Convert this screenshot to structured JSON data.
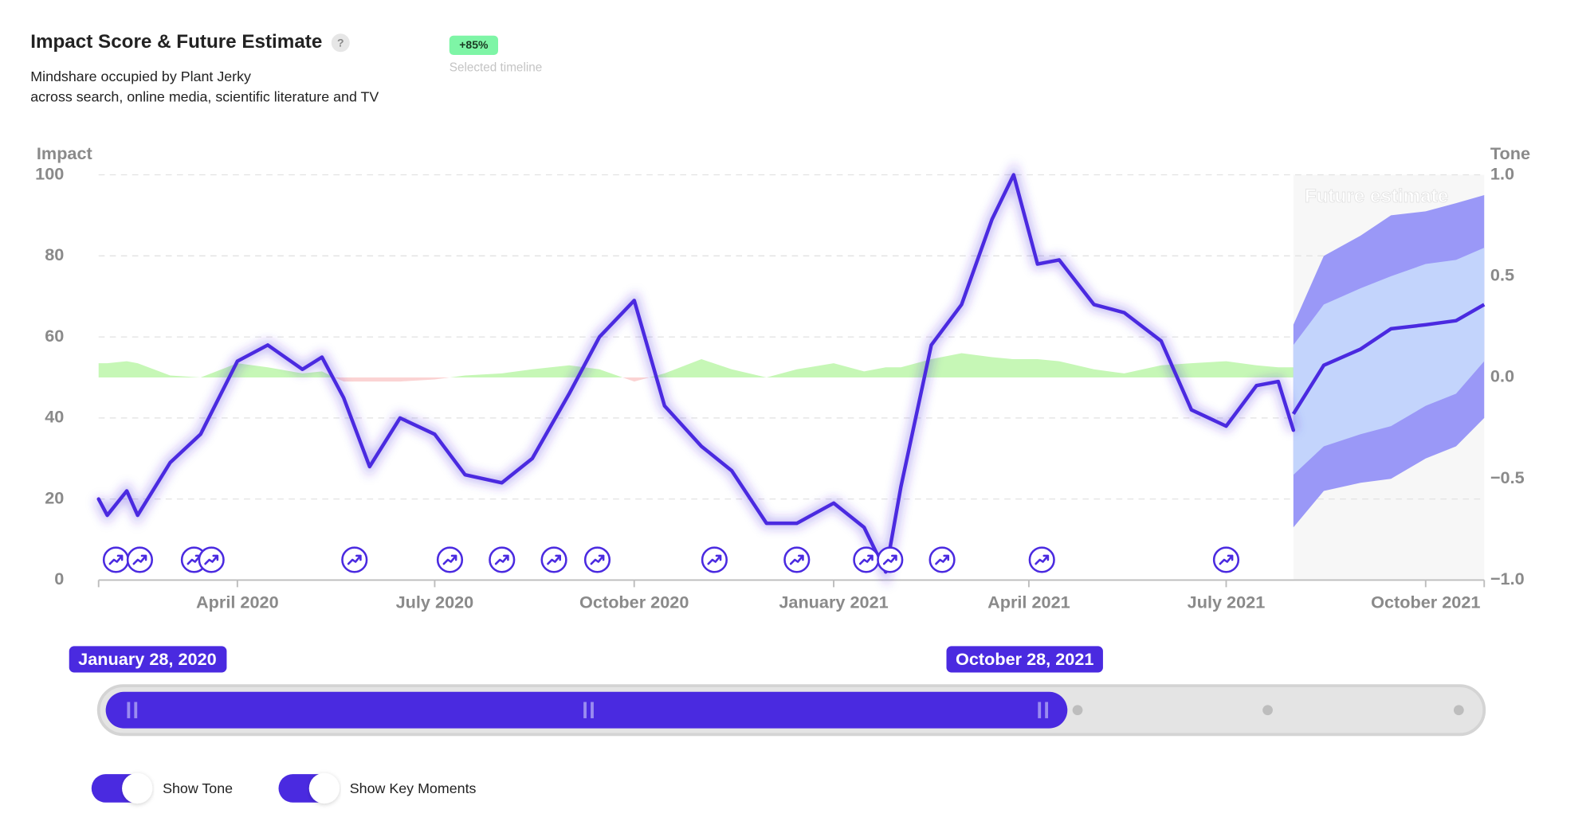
{
  "chart_data": {
    "type": "line",
    "title": "Impact Score & Future Estimate",
    "help": "?",
    "subtitle": [
      "Mindshare occupied by Plant Jerky",
      "across search, online media, scientific literature and TV"
    ],
    "change_badge": "+85%",
    "badge_caption": "Selected timeline",
    "ylim": [
      0,
      100
    ],
    "yticks": [
      0,
      20,
      40,
      60,
      80,
      100
    ],
    "y2lim": [
      -1,
      1
    ],
    "y2ticks": [
      {
        "value": -1,
        "label": "−1.0"
      },
      {
        "value": -0.5,
        "label": "−0.5"
      },
      {
        "value": 0,
        "label": "0.0"
      },
      {
        "value": 0.5,
        "label": "0.5"
      },
      {
        "value": 1,
        "label": "1.0"
      }
    ],
    "xlim": [
      "2020-01-28",
      "2021-10-28"
    ],
    "xticks": [
      {
        "value": "2020-04-01",
        "label": "April 2020"
      },
      {
        "value": "2020-07-01",
        "label": "July 2020"
      },
      {
        "value": "2020-10-01",
        "label": "October 2020"
      },
      {
        "value": "2021-01-01",
        "label": "January 2021"
      },
      {
        "value": "2021-04-01",
        "label": "April 2021"
      },
      {
        "value": "2021-07-01",
        "label": "July 2021"
      },
      {
        "value": "2021-10-01",
        "label": "October 2021"
      }
    ],
    "grid": true,
    "x": [
      "2020-01-28",
      "2020-02-01",
      "2020-02-10",
      "2020-02-15",
      "2020-03-01",
      "2020-03-15",
      "2020-04-01",
      "2020-04-15",
      "2020-05-01",
      "2020-05-10",
      "2020-05-20",
      "2020-06-01",
      "2020-06-15",
      "2020-07-01",
      "2020-07-15",
      "2020-08-01",
      "2020-08-15",
      "2020-09-01",
      "2020-09-15",
      "2020-10-01",
      "2020-10-15",
      "2020-11-01",
      "2020-11-15",
      "2020-12-01",
      "2020-12-15",
      "2021-01-01",
      "2021-01-15",
      "2021-01-25",
      "2021-02-01",
      "2021-02-15",
      "2021-03-01",
      "2021-03-15",
      "2021-03-25",
      "2021-04-05",
      "2021-04-15",
      "2021-05-01",
      "2021-05-15",
      "2021-06-01",
      "2021-06-15",
      "2021-07-01",
      "2021-07-15",
      "2021-07-25",
      "2021-08-01"
    ],
    "series": [
      {
        "name": "Impact",
        "color": "#4a2ae0",
        "values": [
          20,
          16,
          22,
          16,
          29,
          36,
          54,
          58,
          52,
          55,
          45,
          28,
          40,
          36,
          26,
          24,
          30,
          46,
          60,
          69,
          43,
          33,
          27,
          14,
          14,
          19,
          13,
          2,
          23,
          58,
          68,
          89,
          100,
          78,
          79,
          68,
          66,
          59,
          42,
          38,
          48,
          49,
          37
        ]
      },
      {
        "name": "Tone",
        "axis": "y2",
        "color": "#c6f7b6",
        "negative_color": "#fbd3d3",
        "values": [
          0.07,
          0.07,
          0.08,
          0.07,
          0.01,
          0.0,
          0.07,
          0.05,
          0.02,
          0.03,
          -0.02,
          -0.02,
          -0.02,
          -0.01,
          0.01,
          0.02,
          0.04,
          0.06,
          0.04,
          -0.02,
          0.02,
          0.09,
          0.04,
          0.0,
          0.04,
          0.07,
          0.03,
          0.05,
          0.05,
          0.09,
          0.12,
          0.1,
          0.09,
          0.09,
          0.08,
          0.04,
          0.02,
          0.06,
          0.07,
          0.08,
          0.06,
          0.05,
          0.05
        ]
      }
    ],
    "forecast": {
      "label": "Future estimate",
      "x": [
        "2021-08-01",
        "2021-08-15",
        "2021-09-01",
        "2021-09-15",
        "2021-10-01",
        "2021-10-15",
        "2021-10-28"
      ],
      "values": [
        41,
        53,
        57,
        62,
        63,
        64,
        68
      ],
      "inner_band": {
        "color": "#c3d4fc",
        "upper": [
          58,
          68,
          72,
          75,
          78,
          79,
          82
        ],
        "lower": [
          26,
          33,
          36,
          38,
          43,
          46,
          54
        ]
      },
      "outer_band": {
        "color": "#9a98f7",
        "upper": [
          63,
          80,
          85,
          90,
          91,
          93,
          95
        ],
        "lower": [
          13,
          22,
          24,
          25,
          30,
          33,
          40
        ]
      }
    },
    "key_moments": {
      "x": [
        "2020-02-05",
        "2020-02-16",
        "2020-03-12",
        "2020-03-20",
        "2020-05-25",
        "2020-07-08",
        "2020-08-01",
        "2020-08-25",
        "2020-09-14",
        "2020-11-07",
        "2020-12-15",
        "2021-01-16",
        "2021-01-27",
        "2021-02-20",
        "2021-04-07",
        "2021-07-01"
      ]
    }
  },
  "controls": {
    "range_start": "January 28, 2020",
    "range_end": "October 28, 2021",
    "toggles": [
      {
        "label": "Show Tone",
        "on": true
      },
      {
        "label": "Show Key Moments",
        "on": true
      }
    ]
  }
}
